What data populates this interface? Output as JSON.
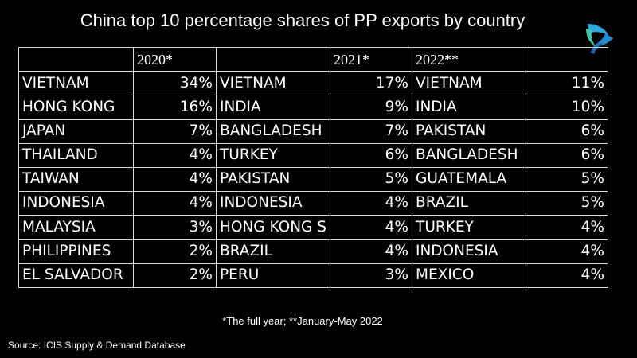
{
  "title": "China top 10 percentage shares of PP exports by country",
  "logo_colors": [
    "#2aa9e0",
    "#1f8ccf",
    "#3cc9a8",
    "#1d5fa8"
  ],
  "table": {
    "headers": [
      "",
      "2020*",
      "",
      "2021*",
      "2022**",
      ""
    ],
    "rows": [
      [
        "VIETNAM",
        "34%",
        "VIETNAM",
        "17%",
        "VIETNAM",
        "11%"
      ],
      [
        "HONG KONG",
        "16%",
        "INDIA",
        "9%",
        "INDIA",
        "10%"
      ],
      [
        "JAPAN",
        "7%",
        "BANGLADESH",
        "7%",
        "PAKISTAN",
        "6%"
      ],
      [
        "THAILAND",
        "4%",
        "TURKEY",
        "6%",
        "BANGLADESH",
        "6%"
      ],
      [
        "TAIWAN",
        "4%",
        "PAKISTAN",
        "5%",
        "GUATEMALA",
        "5%"
      ],
      [
        "INDONESIA",
        "4%",
        "INDONESIA",
        "4%",
        "BRAZIL",
        "5%"
      ],
      [
        "MALAYSIA",
        "3%",
        "HONG KONG S",
        "4%",
        "TURKEY",
        "4%"
      ],
      [
        "PHILIPPINES",
        "2%",
        "BRAZIL",
        "4%",
        "INDONESIA",
        "4%"
      ],
      [
        "EL SALVADOR",
        "2%",
        "PERU",
        "3%",
        "MEXICO",
        "4%"
      ]
    ]
  },
  "chart_data": {
    "type": "table",
    "title": "China top 10 percentage shares of PP exports by country",
    "periods": [
      {
        "label": "2020*",
        "countries": [
          "VIETNAM",
          "HONG KONG",
          "JAPAN",
          "THAILAND",
          "TAIWAN",
          "INDONESIA",
          "MALAYSIA",
          "PHILIPPINES",
          "EL SALVADOR"
        ],
        "values": [
          34,
          16,
          7,
          4,
          4,
          4,
          3,
          2,
          2
        ]
      },
      {
        "label": "2021*",
        "countries": [
          "VIETNAM",
          "INDIA",
          "BANGLADESH",
          "TURKEY",
          "PAKISTAN",
          "INDONESIA",
          "HONG KONG S",
          "BRAZIL",
          "PERU"
        ],
        "values": [
          17,
          9,
          7,
          6,
          5,
          4,
          4,
          4,
          3
        ]
      },
      {
        "label": "2022**",
        "countries": [
          "VIETNAM",
          "INDIA",
          "PAKISTAN",
          "BANGLADESH",
          "GUATEMALA",
          "BRAZIL",
          "TURKEY",
          "INDONESIA",
          "MEXICO"
        ],
        "values": [
          11,
          10,
          6,
          6,
          5,
          5,
          4,
          4,
          4
        ]
      }
    ],
    "unit": "%"
  },
  "footnote": "*The full year; **January-May 2022",
  "source": "Source: ICIS Supply & Demand Database"
}
